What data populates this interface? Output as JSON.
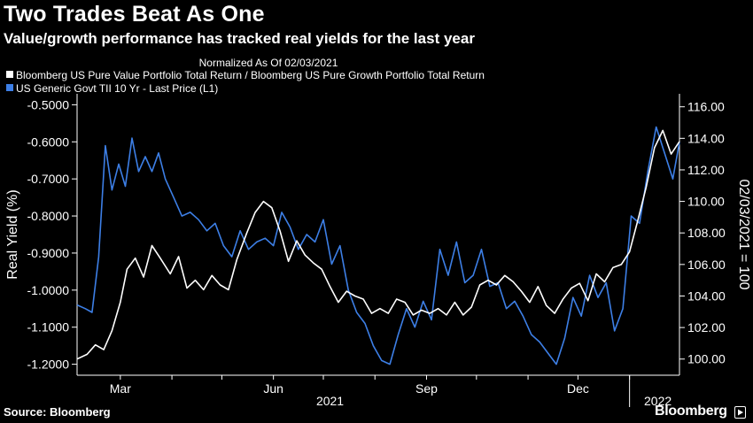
{
  "header": {
    "title": "Two Trades Beat As One",
    "subtitle": "Value/growth performance has tracked real yields for the last year"
  },
  "footer": {
    "source": "Source: Bloomberg",
    "brand": "Bloomberg"
  },
  "colors": {
    "background": "#000000",
    "text": "#ffffff",
    "series_white": "#ffffff",
    "series_blue": "#3d7fe6"
  },
  "chart_data": {
    "type": "line",
    "normalized_note": "Normalized As Of 02/03/2021",
    "legend_position": "top-left",
    "ylabel_left": "Real Yield (%)",
    "ylabel_right": "02/03/2021 = 100",
    "ylim_left": [
      -1.22,
      -0.48
    ],
    "ylim_right": [
      99.2,
      116.6
    ],
    "left_ticks": [
      "-0.5000",
      "-0.6000",
      "-0.7000",
      "-0.8000",
      "-0.9000",
      "-1.0000",
      "-1.1000",
      "-1.2000"
    ],
    "left_tick_values": [
      -0.5,
      -0.6,
      -0.7,
      -0.8,
      -0.9,
      -1.0,
      -1.1,
      -1.2
    ],
    "right_ticks": [
      "116.00",
      "114.00",
      "112.00",
      "110.00",
      "108.00",
      "106.00",
      "104.00",
      "102.00",
      "100.00"
    ],
    "right_tick_values": [
      116,
      114,
      112,
      110,
      108,
      106,
      104,
      102,
      100
    ],
    "x_domain": [
      "2021-02-03",
      "2022-01-31"
    ],
    "x_month_labels": [
      {
        "label": "Mar",
        "date": "2021-03-01"
      },
      {
        "label": "Jun",
        "date": "2021-06-01"
      },
      {
        "label": "Sep",
        "date": "2021-09-01"
      },
      {
        "label": "Dec",
        "date": "2021-12-01"
      }
    ],
    "x_year_labels": [
      {
        "label": "2021",
        "date": "2021-07-05"
      },
      {
        "label": "2022",
        "date": "2022-01-18"
      }
    ],
    "year_divider_date": "2022-01-01",
    "series": [
      {
        "name": "Bloomberg US Pure Value Portfolio Total Return / Bloomberg US Pure Growth Portfolio Total Return",
        "axis": "right",
        "color": "#ffffff",
        "x": [
          "2021-02-03",
          "2021-02-09",
          "2021-02-14",
          "2021-02-19",
          "2021-02-24",
          "2021-03-01",
          "2021-03-05",
          "2021-03-10",
          "2021-03-15",
          "2021-03-20",
          "2021-03-25",
          "2021-03-31",
          "2021-04-05",
          "2021-04-10",
          "2021-04-15",
          "2021-04-20",
          "2021-04-25",
          "2021-04-30",
          "2021-05-05",
          "2021-05-10",
          "2021-05-16",
          "2021-05-21",
          "2021-05-26",
          "2021-05-31",
          "2021-06-05",
          "2021-06-10",
          "2021-06-15",
          "2021-06-20",
          "2021-06-25",
          "2021-06-30",
          "2021-07-05",
          "2021-07-10",
          "2021-07-15",
          "2021-07-20",
          "2021-07-25",
          "2021-07-30",
          "2021-08-04",
          "2021-08-09",
          "2021-08-14",
          "2021-08-19",
          "2021-08-24",
          "2021-08-29",
          "2021-09-03",
          "2021-09-08",
          "2021-09-13",
          "2021-09-18",
          "2021-09-23",
          "2021-09-28",
          "2021-10-03",
          "2021-10-08",
          "2021-10-13",
          "2021-10-18",
          "2021-10-23",
          "2021-10-28",
          "2021-11-02",
          "2021-11-07",
          "2021-11-12",
          "2021-11-17",
          "2021-11-22",
          "2021-11-27",
          "2021-12-02",
          "2021-12-07",
          "2021-12-12",
          "2021-12-17",
          "2021-12-22",
          "2021-12-27",
          "2022-01-01",
          "2022-01-06",
          "2022-01-11",
          "2022-01-16",
          "2022-01-21",
          "2022-01-26",
          "2022-01-31"
        ],
        "values": [
          100.0,
          100.3,
          100.9,
          100.6,
          101.8,
          103.6,
          105.7,
          106.4,
          105.2,
          107.2,
          106.4,
          105.4,
          106.5,
          104.5,
          105.0,
          104.4,
          105.3,
          104.7,
          104.4,
          106.3,
          108.0,
          109.3,
          110.0,
          109.6,
          108.1,
          106.2,
          107.5,
          106.6,
          106.1,
          105.7,
          104.6,
          103.6,
          104.3,
          104.0,
          103.8,
          102.9,
          103.2,
          102.9,
          103.8,
          103.6,
          102.8,
          103.1,
          102.9,
          103.2,
          102.8,
          103.6,
          102.8,
          103.3,
          104.7,
          105.0,
          104.7,
          105.3,
          104.9,
          104.3,
          103.6,
          104.6,
          103.4,
          102.9,
          103.8,
          104.5,
          104.8,
          103.7,
          105.4,
          104.9,
          105.8,
          106.0,
          106.8,
          108.8,
          110.9,
          113.4,
          114.5,
          113.0,
          113.8
        ]
      },
      {
        "name": "US Generic Govt TII 10 Yr - Last Price (L1)",
        "axis": "left",
        "color": "#3d7fe6",
        "x": [
          "2021-02-03",
          "2021-02-08",
          "2021-02-12",
          "2021-02-16",
          "2021-02-20",
          "2021-02-24",
          "2021-02-28",
          "2021-03-04",
          "2021-03-08",
          "2021-03-12",
          "2021-03-16",
          "2021-03-20",
          "2021-03-24",
          "2021-03-28",
          "2021-04-02",
          "2021-04-07",
          "2021-04-12",
          "2021-04-17",
          "2021-04-22",
          "2021-04-27",
          "2021-05-02",
          "2021-05-07",
          "2021-05-12",
          "2021-05-17",
          "2021-05-22",
          "2021-05-27",
          "2021-06-01",
          "2021-06-06",
          "2021-06-11",
          "2021-06-16",
          "2021-06-21",
          "2021-06-26",
          "2021-07-01",
          "2021-07-06",
          "2021-07-11",
          "2021-07-16",
          "2021-07-21",
          "2021-07-26",
          "2021-07-31",
          "2021-08-05",
          "2021-08-10",
          "2021-08-15",
          "2021-08-20",
          "2021-08-25",
          "2021-08-30",
          "2021-09-04",
          "2021-09-09",
          "2021-09-14",
          "2021-09-19",
          "2021-09-24",
          "2021-09-29",
          "2021-10-04",
          "2021-10-09",
          "2021-10-14",
          "2021-10-19",
          "2021-10-24",
          "2021-10-29",
          "2021-11-03",
          "2021-11-08",
          "2021-11-13",
          "2021-11-18",
          "2021-11-23",
          "2021-11-28",
          "2021-12-03",
          "2021-12-08",
          "2021-12-13",
          "2021-12-18",
          "2021-12-23",
          "2021-12-28",
          "2022-01-02",
          "2022-01-07",
          "2022-01-12",
          "2022-01-17",
          "2022-01-22",
          "2022-01-27",
          "2022-01-31"
        ],
        "values": [
          -1.04,
          -1.05,
          -1.06,
          -0.91,
          -0.61,
          -0.73,
          -0.66,
          -0.72,
          -0.59,
          -0.68,
          -0.64,
          -0.68,
          -0.63,
          -0.7,
          -0.75,
          -0.8,
          -0.79,
          -0.81,
          -0.84,
          -0.82,
          -0.88,
          -0.91,
          -0.84,
          -0.89,
          -0.87,
          -0.86,
          -0.88,
          -0.79,
          -0.83,
          -0.89,
          -0.85,
          -0.87,
          -0.81,
          -0.93,
          -0.88,
          -1.0,
          -1.06,
          -1.09,
          -1.15,
          -1.19,
          -1.2,
          -1.12,
          -1.05,
          -1.1,
          -1.03,
          -1.08,
          -0.89,
          -0.96,
          -0.87,
          -0.98,
          -0.96,
          -0.89,
          -0.99,
          -0.98,
          -1.05,
          -1.03,
          -1.07,
          -1.12,
          -1.14,
          -1.17,
          -1.2,
          -1.13,
          -1.02,
          -1.07,
          -0.96,
          -1.02,
          -0.98,
          -1.11,
          -1.05,
          -0.8,
          -0.82,
          -0.68,
          -0.56,
          -0.63,
          -0.7,
          -0.6
        ]
      }
    ]
  }
}
